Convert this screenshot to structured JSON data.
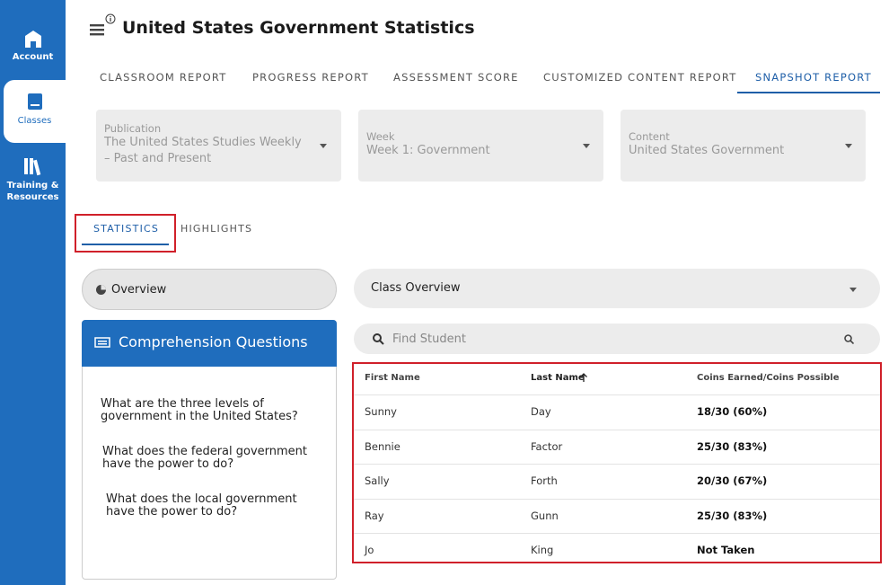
{
  "sidebar": {
    "items": [
      {
        "label": "Account"
      },
      {
        "label": "Classes"
      },
      {
        "label": "Training & Resources"
      }
    ]
  },
  "header": {
    "title": "United States Government Statistics"
  },
  "tabs": [
    "CLASSROOM REPORT",
    "PROGRESS REPORT",
    "ASSESSMENT SCORE",
    "CUSTOMIZED CONTENT REPORT",
    "SNAPSHOT REPORT"
  ],
  "filters": [
    {
      "label": "Publication",
      "value": "The United States Studies Weekly – Past and Present"
    },
    {
      "label": "Week",
      "value": "Week 1: Government"
    },
    {
      "label": "Content",
      "value": "United States Government"
    }
  ],
  "subtabs": [
    "STATISTICS",
    "HIGHLIGHTS"
  ],
  "overview": "Overview",
  "questions": {
    "title": "Comprehension Questions",
    "items": [
      "What are the three levels of government in the United States?",
      "What does the federal government have the power to do?",
      "What does the local government have the power to do?"
    ]
  },
  "class_select": "Class Overview",
  "search_placeholder": "Find Student",
  "table": {
    "columns": [
      "First Name",
      "Last Name",
      "Coins Earned/Coins Possible"
    ],
    "rows": [
      [
        "Sunny",
        "Day",
        "18/30 (60%)"
      ],
      [
        "Bennie",
        "Factor",
        "25/30 (83%)"
      ],
      [
        "Sally",
        "Forth",
        "20/30 (67%)"
      ],
      [
        "Ray",
        "Gunn",
        "25/30 (83%)"
      ],
      [
        "Jo",
        "King",
        "Not Taken"
      ]
    ]
  }
}
